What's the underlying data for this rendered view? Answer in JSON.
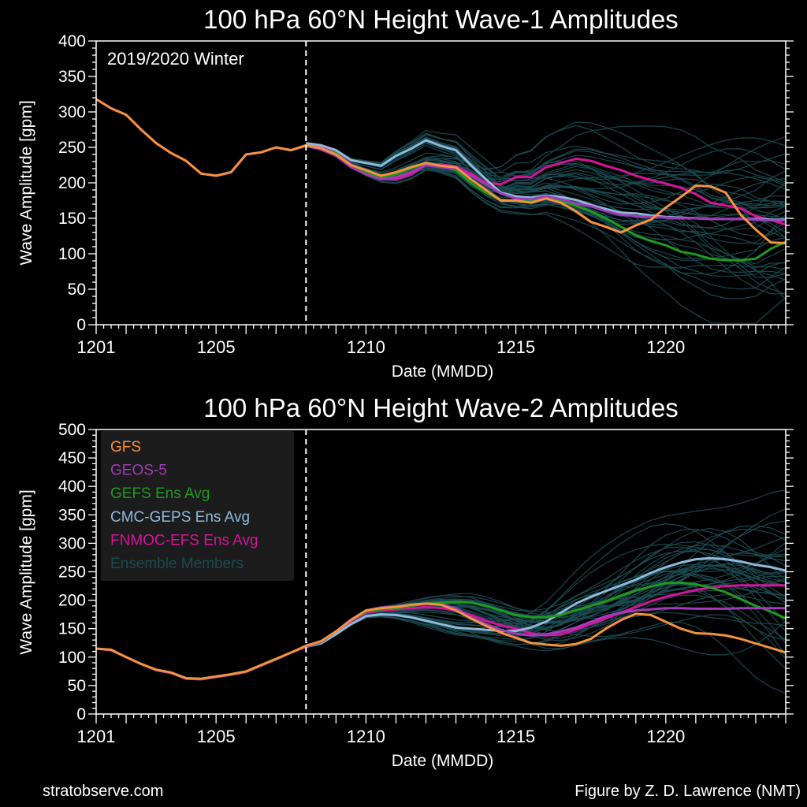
{
  "footer": {
    "left": "stratobserve.com",
    "right": "Figure by Z. D. Lawrence (NMT)"
  },
  "colors": {
    "GFS": "#f5923e",
    "GEOS-5": "#a23bb8",
    "GEFS Ens Avg": "#1f9a1f",
    "CMC-GEPS Ens Avg": "#8fb9dc",
    "FNMOC-EFS Ens Avg": "#d4159a",
    "Ensemble Members": "#1b4a50",
    "legend_bg": "#1e1e1e"
  },
  "chart_data": [
    {
      "type": "line",
      "title": "100 hPa 60°N    Height Wave-1 Amplitudes",
      "xlabel": "Date (MMDD)",
      "ylabel": "Wave Amplitude  [gpm]",
      "annotation": "2019/2020 Winter",
      "x_unit": "day of December 2019",
      "xlim": [
        1,
        24
      ],
      "ylim": [
        0,
        400
      ],
      "yticks": [
        0,
        50,
        100,
        150,
        200,
        250,
        300,
        350,
        400
      ],
      "xticks": [
        1,
        5,
        10,
        15,
        20
      ],
      "xticklabels": [
        "1201",
        "1205",
        "1210",
        "1215",
        "1220"
      ],
      "forecast_start": 8,
      "grid": false,
      "series": [
        {
          "name": "GFS",
          "x": [
            1,
            1.5,
            2,
            2.5,
            3,
            3.5,
            4,
            4.5,
            5,
            5.5,
            6,
            6.5,
            7,
            7.5,
            8,
            8.5,
            9,
            9.5,
            10,
            10.5,
            11,
            11.5,
            12,
            12.5,
            13,
            13.5,
            14,
            14.5,
            15,
            15.5,
            16,
            16.5,
            17,
            17.5,
            18,
            18.5,
            19,
            19.5,
            20,
            20.5,
            21,
            21.5,
            22,
            22.5,
            23,
            23.5,
            24
          ],
          "y": [
            318,
            305,
            296,
            275,
            256,
            242,
            231,
            213,
            210,
            215,
            240,
            243,
            250,
            246,
            253,
            249,
            240,
            225,
            218,
            210,
            215,
            222,
            228,
            224,
            222,
            205,
            190,
            175,
            175,
            172,
            178,
            172,
            160,
            145,
            138,
            130,
            140,
            148,
            165,
            180,
            196,
            195,
            186,
            155,
            134,
            116,
            115
          ]
        },
        {
          "name": "GEOS-5",
          "x": [
            1,
            1.5,
            2,
            2.5,
            3,
            3.5,
            4,
            4.5,
            5,
            5.5,
            6,
            6.5,
            7,
            7.5,
            8,
            8.5,
            9,
            9.5,
            10,
            10.5,
            11,
            11.5,
            12,
            12.5,
            13,
            13.5,
            14,
            14.5,
            15,
            15.5,
            16,
            16.5,
            17,
            17.5,
            18,
            18.5,
            19,
            19.5,
            20,
            20.5,
            21,
            21.5,
            22,
            22.5,
            23,
            23.5,
            24
          ],
          "y": [
            318,
            305,
            296,
            275,
            256,
            242,
            231,
            213,
            210,
            215,
            240,
            243,
            250,
            246,
            252,
            247,
            238,
            222,
            212,
            205,
            208,
            215,
            225,
            222,
            220,
            210,
            198,
            185,
            178,
            177,
            181,
            177,
            171,
            167,
            160,
            155,
            153,
            152,
            151,
            150,
            150,
            149,
            149,
            149,
            148,
            147,
            147
          ]
        },
        {
          "name": "GEFS Ens Avg",
          "x": [
            8,
            8.5,
            9,
            9.5,
            10,
            10.5,
            11,
            11.5,
            12,
            12.5,
            13,
            13.5,
            14,
            14.5,
            15,
            15.5,
            16,
            16.5,
            17,
            17.5,
            18,
            18.5,
            19,
            19.5,
            20,
            20.5,
            21,
            21.5,
            22,
            22.5,
            23,
            23.5,
            24
          ],
          "y": [
            252,
            248,
            242,
            225,
            215,
            208,
            212,
            220,
            228,
            224,
            218,
            200,
            186,
            176,
            175,
            175,
            179,
            174,
            168,
            160,
            150,
            138,
            126,
            118,
            112,
            103,
            99,
            93,
            91,
            91,
            93,
            107,
            117
          ]
        },
        {
          "name": "CMC-GEPS Ens Avg",
          "x": [
            8,
            8.5,
            9,
            9.5,
            10,
            10.5,
            11,
            11.5,
            12,
            12.5,
            13,
            13.5,
            14,
            14.5,
            15,
            15.5,
            16,
            16.5,
            17,
            17.5,
            18,
            18.5,
            19,
            19.5,
            20,
            20.5,
            21,
            21.5,
            22,
            22.5,
            23,
            23.5,
            24
          ],
          "y": [
            256,
            253,
            246,
            232,
            228,
            224,
            238,
            248,
            260,
            252,
            246,
            225,
            205,
            186,
            181,
            179,
            182,
            180,
            176,
            169,
            163,
            158,
            157,
            154,
            152,
            151,
            150,
            149,
            149,
            149,
            149,
            148,
            148
          ]
        },
        {
          "name": "FNMOC-EFS Ens Avg",
          "x": [
            8,
            8.5,
            9,
            9.5,
            10,
            10.5,
            11,
            11.5,
            12,
            12.5,
            13,
            13.5,
            14,
            14.5,
            15,
            15.5,
            16,
            16.5,
            17,
            17.5,
            18,
            18.5,
            19,
            19.5,
            20,
            20.5,
            21,
            21.5,
            22,
            22.5,
            23,
            23.5,
            24
          ],
          "y": [
            254,
            250,
            244,
            226,
            214,
            206,
            205,
            212,
            225,
            226,
            223,
            213,
            200,
            198,
            208,
            208,
            222,
            228,
            234,
            231,
            224,
            218,
            210,
            204,
            199,
            193,
            184,
            172,
            168,
            164,
            153,
            148,
            141
          ]
        }
      ]
    },
    {
      "type": "line",
      "title": "100 hPa 60°N   Height Wave-2 Amplitudes",
      "xlabel": "Date (MMDD)",
      "ylabel": "Wave Amplitude  [gpm]",
      "x_unit": "day of December 2019",
      "xlim": [
        1,
        24
      ],
      "ylim": [
        0,
        500
      ],
      "yticks": [
        0,
        50,
        100,
        150,
        200,
        250,
        300,
        350,
        400,
        450,
        500
      ],
      "xticks": [
        1,
        5,
        10,
        15,
        20
      ],
      "xticklabels": [
        "1201",
        "1205",
        "1210",
        "1215",
        "1220"
      ],
      "forecast_start": 8,
      "grid": false,
      "legend": {
        "position": "top-left",
        "entries": [
          "GFS",
          "GEOS-5",
          "GEFS Ens Avg",
          "CMC-GEPS Ens Avg",
          "FNMOC-EFS Ens Avg",
          "Ensemble Members"
        ]
      },
      "series": [
        {
          "name": "GFS",
          "x": [
            1,
            1.5,
            2,
            2.5,
            3,
            3.5,
            4,
            4.5,
            5,
            5.5,
            6,
            6.5,
            7,
            7.5,
            8,
            8.5,
            9,
            9.5,
            10,
            10.5,
            11,
            11.5,
            12,
            12.5,
            13,
            13.5,
            14,
            14.5,
            15,
            15.5,
            16,
            16.5,
            17,
            17.5,
            18,
            18.5,
            19,
            19.5,
            20,
            20.5,
            21,
            21.5,
            22,
            22.5,
            23,
            23.5,
            24
          ],
          "y": [
            115,
            113,
            100,
            88,
            78,
            73,
            63,
            62,
            66,
            70,
            75,
            86,
            97,
            108,
            120,
            128,
            145,
            165,
            182,
            186,
            188,
            192,
            194,
            192,
            182,
            168,
            155,
            143,
            134,
            125,
            122,
            120,
            123,
            132,
            150,
            165,
            176,
            174,
            162,
            150,
            142,
            141,
            138,
            132,
            124,
            116,
            108
          ]
        },
        {
          "name": "GEOS-5",
          "x": [
            1,
            1.5,
            2,
            2.5,
            3,
            3.5,
            4,
            4.5,
            5,
            5.5,
            6,
            6.5,
            7,
            7.5,
            8,
            8.5,
            9,
            9.5,
            10,
            10.5,
            11,
            11.5,
            12,
            12.5,
            13,
            13.5,
            14,
            14.5,
            15,
            15.5,
            16,
            16.5,
            17,
            17.5,
            18,
            18.5,
            19,
            19.5,
            20,
            20.5,
            21,
            21.5,
            22,
            22.5,
            23,
            23.5,
            24
          ],
          "y": [
            115,
            112,
            100,
            88,
            77,
            72,
            62,
            61,
            65,
            69,
            74,
            85,
            96,
            108,
            118,
            127,
            145,
            166,
            182,
            187,
            189,
            192,
            194,
            193,
            186,
            170,
            158,
            148,
            141,
            138,
            140,
            145,
            152,
            162,
            172,
            178,
            182,
            184,
            186,
            186,
            185,
            185,
            185,
            186,
            186,
            186,
            186
          ]
        },
        {
          "name": "GEFS Ens Avg",
          "x": [
            8,
            8.5,
            9,
            9.5,
            10,
            10.5,
            11,
            11.5,
            12,
            12.5,
            13,
            13.5,
            14,
            14.5,
            15,
            15.5,
            16,
            16.5,
            17,
            17.5,
            18,
            18.5,
            19,
            19.5,
            20,
            20.5,
            21,
            21.5,
            22,
            22.5,
            23,
            23.5,
            24
          ],
          "y": [
            118,
            126,
            145,
            165,
            180,
            184,
            186,
            190,
            194,
            196,
            197,
            196,
            190,
            182,
            174,
            170,
            170,
            174,
            182,
            190,
            198,
            208,
            217,
            224,
            230,
            231,
            228,
            222,
            214,
            202,
            190,
            180,
            168
          ]
        },
        {
          "name": "CMC-GEPS Ens Avg",
          "x": [
            8,
            8.5,
            9,
            9.5,
            10,
            10.5,
            11,
            11.5,
            12,
            12.5,
            13,
            13.5,
            14,
            14.5,
            15,
            15.5,
            16,
            16.5,
            17,
            17.5,
            18,
            18.5,
            19,
            19.5,
            20,
            20.5,
            21,
            21.5,
            22,
            22.5,
            23,
            23.5,
            24
          ],
          "y": [
            118,
            124,
            140,
            158,
            172,
            175,
            174,
            170,
            164,
            158,
            152,
            150,
            148,
            146,
            146,
            152,
            162,
            178,
            194,
            206,
            216,
            226,
            236,
            248,
            258,
            266,
            272,
            274,
            272,
            268,
            262,
            258,
            252
          ]
        },
        {
          "name": "FNMOC-EFS Ens Avg",
          "x": [
            8,
            8.5,
            9,
            9.5,
            10,
            10.5,
            11,
            11.5,
            12,
            12.5,
            13,
            13.5,
            14,
            14.5,
            15,
            15.5,
            16,
            16.5,
            17,
            17.5,
            18,
            18.5,
            19,
            19.5,
            20,
            20.5,
            21,
            21.5,
            22,
            22.5,
            23,
            23.5,
            24
          ],
          "y": [
            118,
            126,
            144,
            163,
            178,
            182,
            184,
            186,
            188,
            186,
            182,
            174,
            164,
            156,
            150,
            142,
            138,
            140,
            148,
            158,
            168,
            178,
            188,
            198,
            206,
            212,
            218,
            222,
            225,
            226,
            226,
            226,
            226
          ]
        }
      ]
    }
  ]
}
